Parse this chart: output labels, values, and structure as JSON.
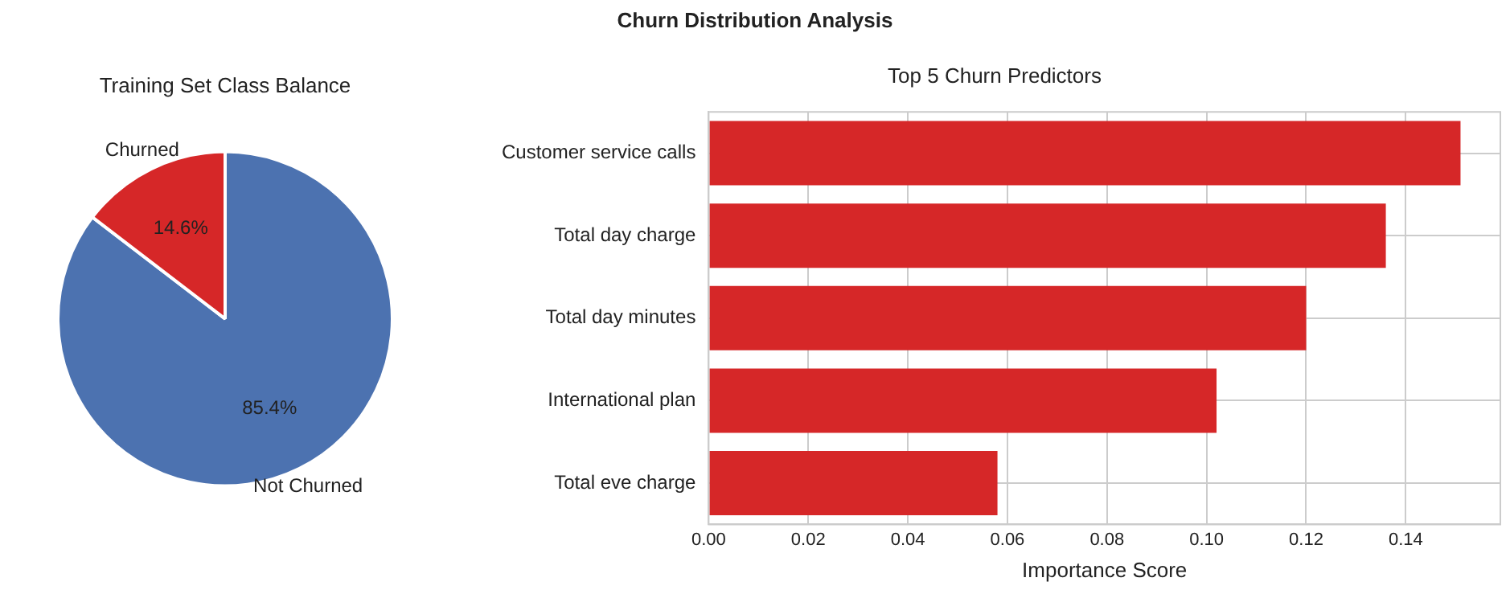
{
  "chart_data": [
    {
      "type": "pie",
      "title": "Training Set Class Balance",
      "categories": [
        "Not Churned",
        "Churned"
      ],
      "values": [
        85.4,
        14.6
      ],
      "colors": [
        "#4c72b0",
        "#d62728"
      ],
      "value_labels": [
        "85.4%",
        "14.6%"
      ],
      "legend": false
    },
    {
      "type": "bar",
      "title": "Churn Distribution Analysis",
      "subtitle": "Top 5 Churn Predictors",
      "orientation": "horizontal",
      "xlabel": "Importance Score",
      "categories": [
        "Customer service calls",
        "Total day charge",
        "Total day minutes",
        "International plan",
        "Total eve charge"
      ],
      "values": [
        0.151,
        0.136,
        0.12,
        0.102,
        0.058
      ],
      "color": "#d62728",
      "xlim": [
        0,
        0.159
      ],
      "xticks": [
        {
          "value": 0,
          "label": "0.00"
        },
        0.02,
        0.04,
        0.06,
        0.08,
        {
          "value": 0.1,
          "label": "0.10"
        },
        0.12,
        0.14
      ],
      "grid": true,
      "legend": false
    }
  ]
}
